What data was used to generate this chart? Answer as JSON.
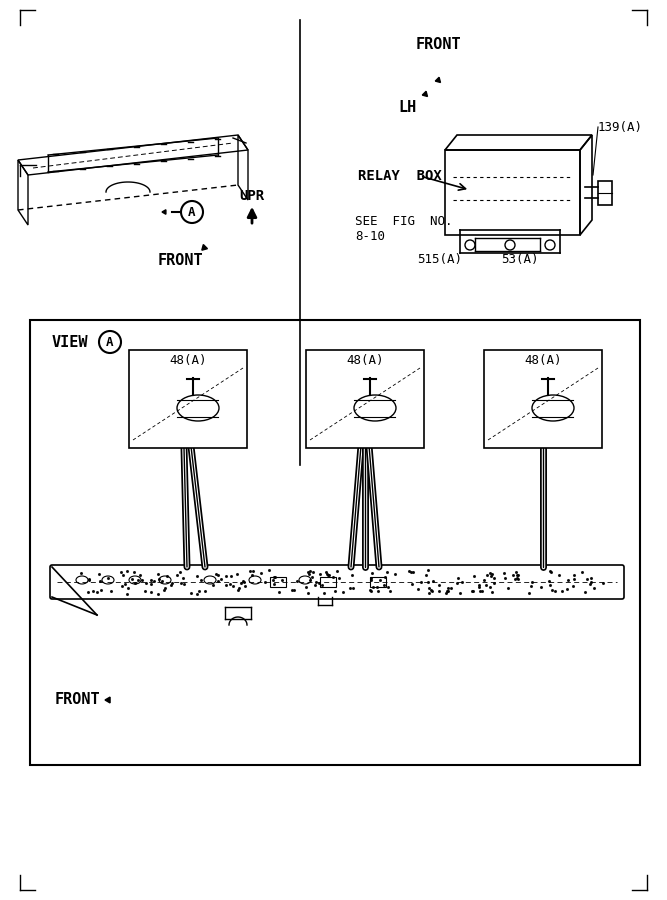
{
  "bg_color": "#ffffff",
  "line_color": "#000000",
  "labels": {
    "front_upper_right": "FRONT",
    "lh": "LH",
    "relay_box": "RELAY  BOX",
    "see_fig_1": "SEE  FIG  NO.",
    "see_fig_2": "8-10",
    "upr": "UPR",
    "front_lower_left": "FRONT",
    "part_139": "139(A)",
    "part_53": "53(A)",
    "part_515": "515(A)",
    "view_a": "VIEW",
    "part_48": "48(A)",
    "front_view": "FRONT"
  }
}
